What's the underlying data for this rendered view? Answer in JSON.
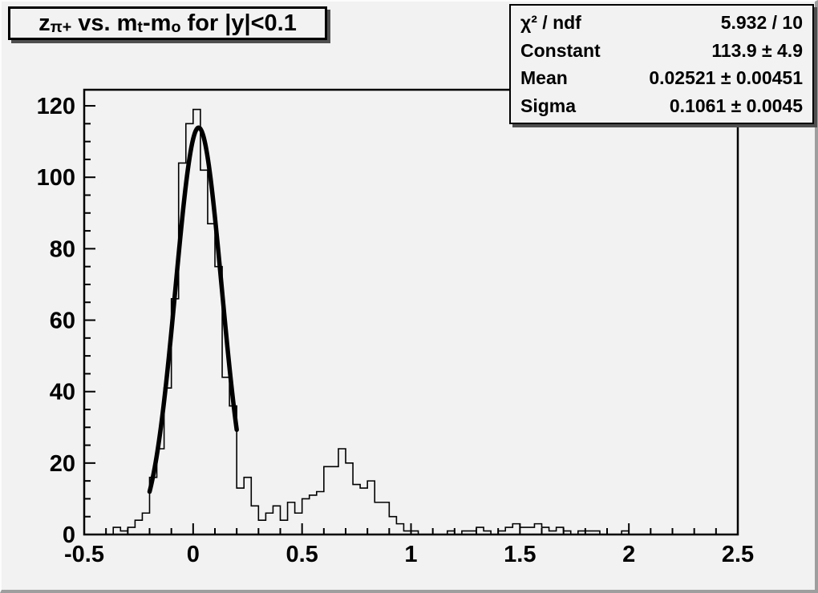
{
  "title": {
    "full": "z_π+ vs. m_t-m_o for |y|<0.1",
    "p0": "z",
    "s0": "π+",
    "p1": " vs. m",
    "s1": "t",
    "p2": "-m",
    "s2": "o",
    "p3": " for |y|<0.1"
  },
  "stats": {
    "rows": [
      {
        "label": "χ² / ndf",
        "value": "5.932 / 10"
      },
      {
        "label": "Constant",
        "value": "113.9 ± 4.9"
      },
      {
        "label": "Mean",
        "value": "0.02521 ± 0.00451"
      },
      {
        "label": "Sigma",
        "value": "0.1061 ± 0.0045"
      }
    ]
  },
  "chart_data": {
    "type": "bar",
    "subtype": "step-histogram",
    "title": "z_π+ vs. m_t-m_o for |y|<0.1",
    "xlabel": "",
    "ylabel": "",
    "xlim": [
      -0.5,
      2.5
    ],
    "ylim": [
      0,
      124.5
    ],
    "grid": false,
    "x_start": -0.5,
    "n_bins": 90,
    "bin_width": 0.033333,
    "values": [
      0,
      0,
      0,
      0,
      2,
      1,
      2,
      4,
      6,
      16,
      24,
      41,
      66,
      104,
      115,
      119,
      102,
      87,
      75,
      44,
      36,
      13,
      16,
      8,
      4,
      6,
      8,
      4,
      9,
      6,
      10,
      11,
      12,
      19,
      19,
      24,
      20,
      14,
      13,
      15,
      9,
      9,
      5,
      3,
      1,
      1,
      0,
      0,
      0,
      0,
      1,
      0,
      1,
      1,
      2,
      1,
      0,
      1,
      2,
      3,
      2,
      2,
      3,
      2,
      1,
      2,
      1,
      0,
      1,
      1,
      1,
      0,
      0,
      0,
      1,
      0,
      0,
      0,
      0,
      0,
      0,
      0,
      0,
      0,
      0,
      0,
      0,
      0,
      0,
      0
    ],
    "x_tick_values": [
      -0.5,
      0,
      0.5,
      1,
      1.5,
      2,
      2.5
    ],
    "x_tick_labels": [
      "-0.5",
      "0",
      "0.5",
      "1",
      "1.5",
      "2",
      "2.5"
    ],
    "x_minor_step": 0.1,
    "y_tick_values": [
      0,
      20,
      40,
      60,
      80,
      100,
      120
    ],
    "y_tick_labels": [
      "0",
      "20",
      "40",
      "60",
      "80",
      "100",
      "120"
    ],
    "y_minor_step": 5,
    "fit": {
      "type": "gaussian",
      "constant": 113.9,
      "mean": 0.02521,
      "sigma": 0.1061,
      "range": [
        -0.2,
        0.2
      ]
    },
    "line_color": "#000000",
    "background_color": "#f2f2f2"
  }
}
